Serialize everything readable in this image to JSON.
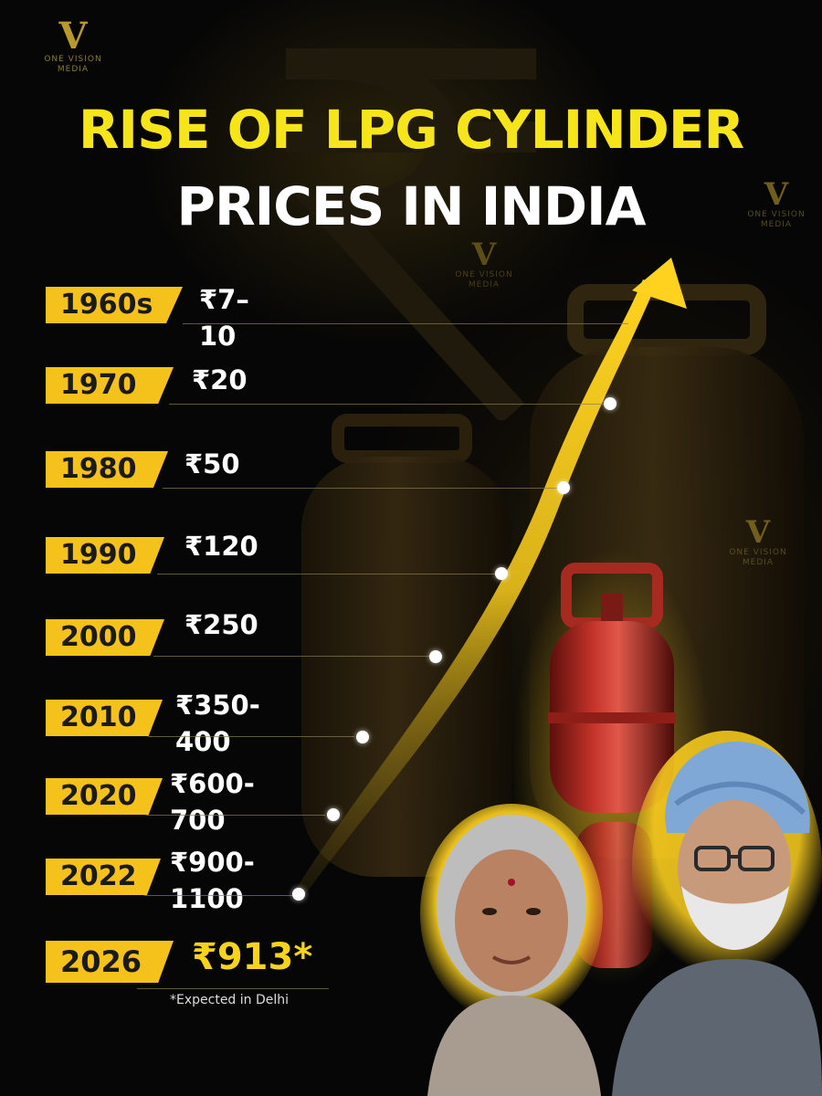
{
  "brand": {
    "line1": "ONE VISION",
    "line2": "MEDIA",
    "mark": "V"
  },
  "title": {
    "line1": "RISE OF LPG CYLINDER",
    "line2": "PRICES IN INDIA"
  },
  "timeline": [
    {
      "year": "1960s",
      "price": "₹7–10"
    },
    {
      "year": "1970",
      "price": "₹20"
    },
    {
      "year": "1980",
      "price": "₹50"
    },
    {
      "year": "1990",
      "price": "₹120"
    },
    {
      "year": "2000",
      "price": "₹250"
    },
    {
      "year": "2010",
      "price": "₹350-400"
    },
    {
      "year": "2020",
      "price": "₹600-700"
    },
    {
      "year": "2022",
      "price": "₹900-1100"
    },
    {
      "year": "2026",
      "price": "₹913*"
    }
  ],
  "footnote": "*Expected in Delhi",
  "colors": {
    "accent": "#f4c21a",
    "title_yellow": "#f7e51c",
    "background": "#060606",
    "cylinder": "#b3261e"
  }
}
